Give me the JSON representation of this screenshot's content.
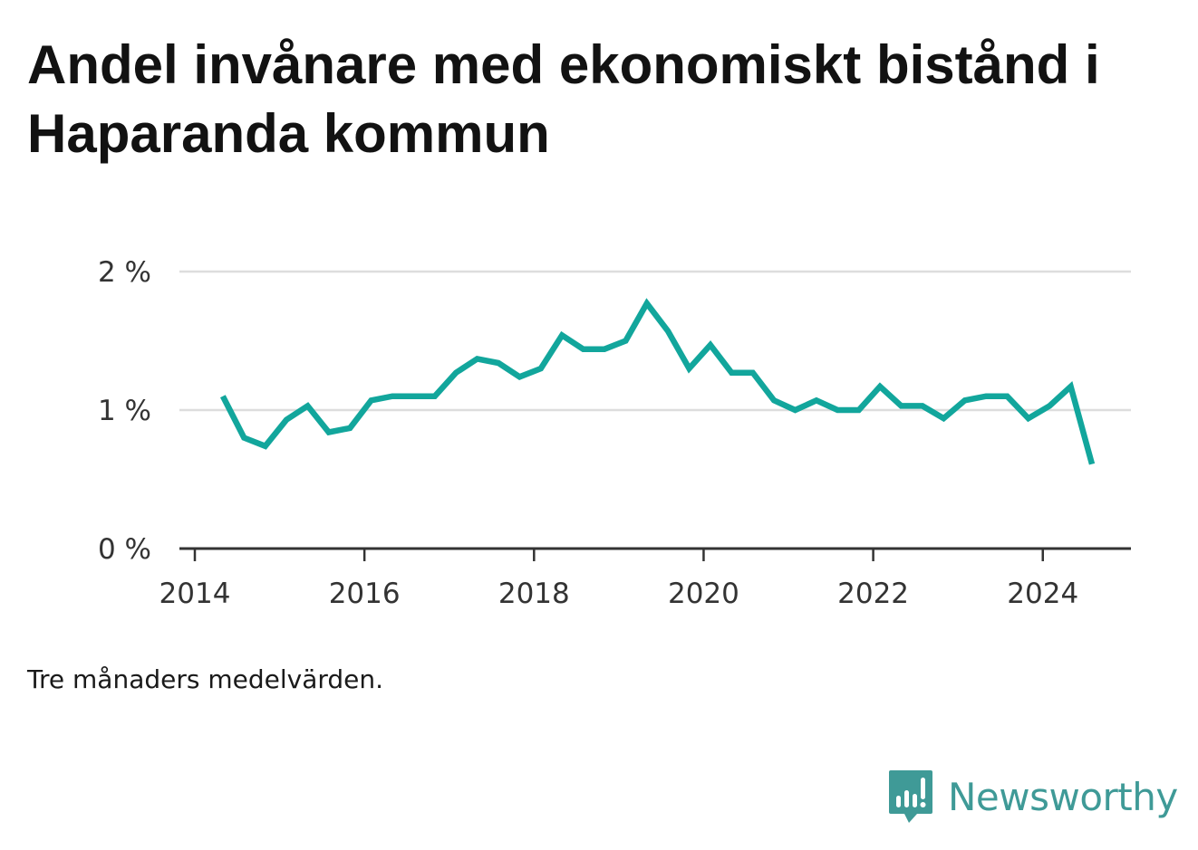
{
  "title": "Andel invånare med ekonomiskt bistånd i Haparanda kommun",
  "note": "Tre månaders medelvärden.",
  "brand": {
    "name": "Newsworthy",
    "icon": "newsworthy-logo-icon",
    "color": "#3f9a97"
  },
  "colors": {
    "line": "#12a69c",
    "grid": "#dddddd",
    "axis": "#333333"
  },
  "chart_data": {
    "type": "line",
    "title": "Andel invånare med ekonomiskt bistånd i Haparanda kommun",
    "xlabel": "",
    "ylabel": "",
    "xlim": [
      2014.0,
      2025.05
    ],
    "ylim": [
      0,
      2
    ],
    "x_ticks": [
      2014,
      2016,
      2018,
      2020,
      2022,
      2024
    ],
    "x_tick_labels": [
      "2014",
      "2016",
      "2018",
      "2020",
      "2022",
      "2024"
    ],
    "y_ticks": [
      0,
      1,
      2
    ],
    "y_tick_labels": [
      "0 %",
      "1 %",
      "2 %"
    ],
    "grid": true,
    "legend": "none",
    "series": [
      {
        "x": [
          2014.33,
          2014.58,
          2014.83,
          2015.08,
          2015.33,
          2015.58,
          2015.83,
          2016.08,
          2016.33,
          2016.58,
          2016.83,
          2017.08,
          2017.33,
          2017.58,
          2017.83,
          2018.08,
          2018.33,
          2018.58,
          2018.83,
          2019.08,
          2019.33,
          2019.58,
          2019.83,
          2020.08,
          2020.33,
          2020.58,
          2020.83,
          2021.08,
          2021.33,
          2021.58,
          2021.83,
          2022.08,
          2022.33,
          2022.58,
          2022.83,
          2023.08,
          2023.33,
          2023.58,
          2023.83,
          2024.08,
          2024.33,
          2024.58
        ],
        "y": [
          1.1,
          0.8,
          0.74,
          0.93,
          1.03,
          0.84,
          0.87,
          1.07,
          1.1,
          1.1,
          1.1,
          1.27,
          1.37,
          1.34,
          1.24,
          1.3,
          1.54,
          1.44,
          1.44,
          1.5,
          1.77,
          1.57,
          1.3,
          1.47,
          1.27,
          1.27,
          1.07,
          1.0,
          1.07,
          1.0,
          1.0,
          1.17,
          1.03,
          1.03,
          0.94,
          1.07,
          1.1,
          1.1,
          0.94,
          1.03,
          1.17,
          0.61
        ]
      }
    ]
  }
}
